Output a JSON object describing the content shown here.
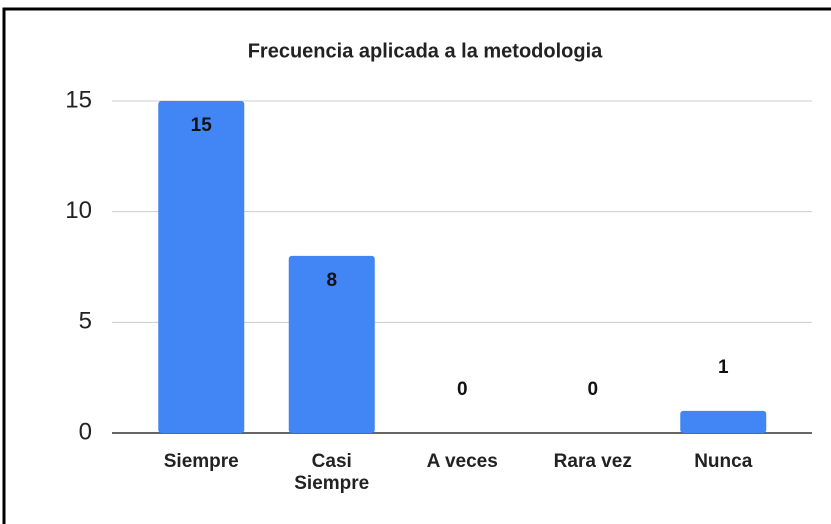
{
  "chart_data": {
    "type": "bar",
    "title": "Frecuencia aplicada a la metodologia",
    "categories": [
      "Siempre",
      "Casi Siempre",
      "A veces",
      "Rara vez",
      "Nunca"
    ],
    "values": [
      15,
      8,
      0,
      0,
      1
    ],
    "color": "#4285f4",
    "ylim": [
      0,
      15
    ],
    "yticks": [
      0,
      5,
      10,
      15
    ],
    "grid": true
  }
}
